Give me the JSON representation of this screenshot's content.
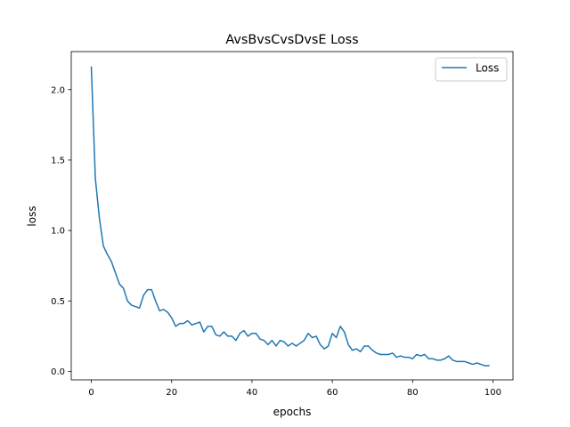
{
  "chart_data": {
    "type": "line",
    "title": "AvsBvsCvsDvsE Loss",
    "xlabel": "epochs",
    "ylabel": "loss",
    "xlim": [
      -5,
      105
    ],
    "ylim": [
      -0.06,
      2.27
    ],
    "xticks": [
      0,
      20,
      40,
      60,
      80,
      100
    ],
    "xtick_labels": [
      "0",
      "20",
      "40",
      "60",
      "80",
      "100"
    ],
    "yticks": [
      0.0,
      0.5,
      1.0,
      1.5,
      2.0
    ],
    "ytick_labels": [
      "0.0",
      "0.5",
      "1.0",
      "1.5",
      "2.0"
    ],
    "grid": false,
    "legend_position": "upper right",
    "series": [
      {
        "name": "Loss",
        "color": "#1f77b4",
        "x": [
          0,
          1,
          2,
          3,
          4,
          5,
          6,
          7,
          8,
          9,
          10,
          11,
          12,
          13,
          14,
          15,
          16,
          17,
          18,
          19,
          20,
          21,
          22,
          23,
          24,
          25,
          26,
          27,
          28,
          29,
          30,
          31,
          32,
          33,
          34,
          35,
          36,
          37,
          38,
          39,
          40,
          41,
          42,
          43,
          44,
          45,
          46,
          47,
          48,
          49,
          50,
          51,
          52,
          53,
          54,
          55,
          56,
          57,
          58,
          59,
          60,
          61,
          62,
          63,
          64,
          65,
          66,
          67,
          68,
          69,
          70,
          71,
          72,
          73,
          74,
          75,
          76,
          77,
          78,
          79,
          80,
          81,
          82,
          83,
          84,
          85,
          86,
          87,
          88,
          89,
          90,
          91,
          92,
          93,
          94,
          95,
          96,
          97,
          98,
          99
        ],
        "values": [
          2.16,
          1.37,
          1.09,
          0.89,
          0.83,
          0.78,
          0.7,
          0.62,
          0.59,
          0.5,
          0.47,
          0.46,
          0.45,
          0.54,
          0.58,
          0.58,
          0.5,
          0.43,
          0.44,
          0.42,
          0.38,
          0.32,
          0.34,
          0.34,
          0.36,
          0.33,
          0.34,
          0.35,
          0.28,
          0.32,
          0.32,
          0.26,
          0.25,
          0.28,
          0.25,
          0.25,
          0.22,
          0.27,
          0.29,
          0.25,
          0.27,
          0.27,
          0.23,
          0.22,
          0.19,
          0.22,
          0.18,
          0.22,
          0.21,
          0.18,
          0.2,
          0.18,
          0.2,
          0.22,
          0.27,
          0.24,
          0.25,
          0.19,
          0.16,
          0.18,
          0.27,
          0.24,
          0.32,
          0.28,
          0.19,
          0.15,
          0.16,
          0.14,
          0.18,
          0.18,
          0.15,
          0.13,
          0.12,
          0.12,
          0.12,
          0.13,
          0.1,
          0.11,
          0.1,
          0.1,
          0.09,
          0.12,
          0.11,
          0.12,
          0.09,
          0.09,
          0.08,
          0.08,
          0.09,
          0.11,
          0.08,
          0.07,
          0.07,
          0.07,
          0.06,
          0.05,
          0.06,
          0.05,
          0.04,
          0.04
        ]
      }
    ]
  }
}
